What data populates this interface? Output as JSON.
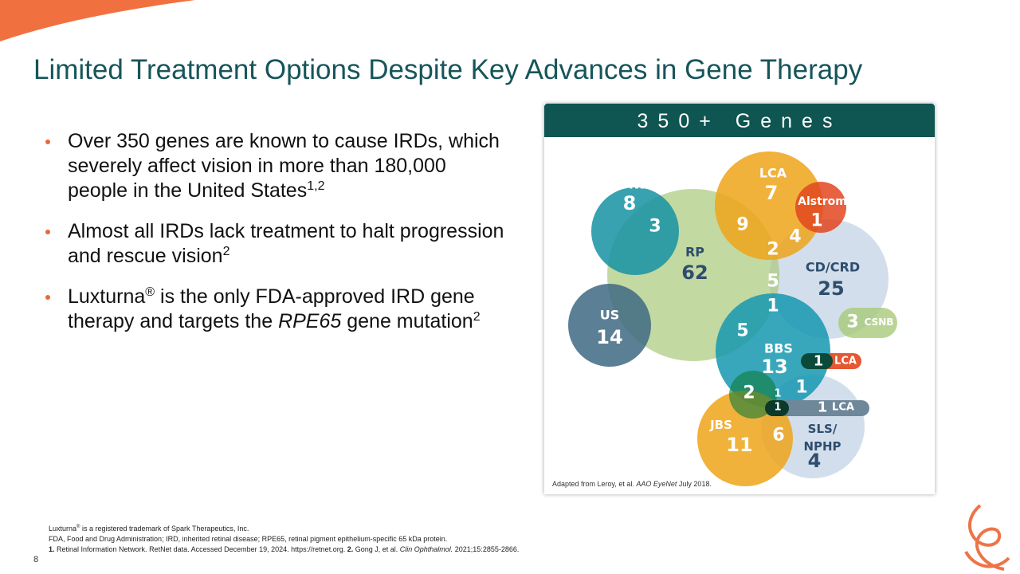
{
  "header": {
    "title": "Limited Treatment Options Despite Key Advances in Gene Therapy"
  },
  "bullets": [
    [
      "Over 350 genes are known to cause IRDs, which severely affect vision in more than 180,000 people in the United States",
      "1,2"
    ],
    [
      "Almost all IRDs lack treatment to halt progression and rescue vision",
      "2"
    ],
    [
      "Luxturna",
      "®",
      " is the only FDA-approved IRD gene therapy and targets the ",
      "RPE65",
      " gene mutation",
      "2"
    ]
  ],
  "panel": {
    "header": "350+ Genes",
    "caption": [
      "Adapted from Leroy, et al. ",
      "AAO EyeNet",
      " July 2018."
    ]
  },
  "diagram": {
    "labels": [
      "CSNB",
      "8",
      "3",
      "LCA",
      "7",
      "Alstrom",
      "1",
      "9",
      "4",
      "2",
      "RP",
      "62",
      "CD/CRD",
      "25",
      "5",
      "1",
      "US",
      "14",
      "5",
      "BBS",
      "13",
      "1",
      "LCA",
      "3",
      "CSNB",
      "1",
      "2",
      "1",
      "1",
      "1",
      "LCA",
      "JBS",
      "11",
      "6",
      "SLS/",
      "NPHP",
      "4"
    ]
  },
  "footnotes": [
    [
      "Luxturna",
      "®",
      " is a registered trademark of Spark Therapeutics, Inc."
    ],
    [
      "FDA, Food and Drug Administration; IRD, inherited retinal disease; RPE65, retinal pigment epithelium-specific 65 kDa protein."
    ],
    [
      "1.",
      " Retinal Information Network. RetNet data. Accessed December 19, 2024. https://retnet.org. ",
      "2.",
      " Gong J, et al. ",
      "Clin Ophthalmol.",
      " 2021;15:2855-2866."
    ]
  ],
  "page_number": "8"
}
